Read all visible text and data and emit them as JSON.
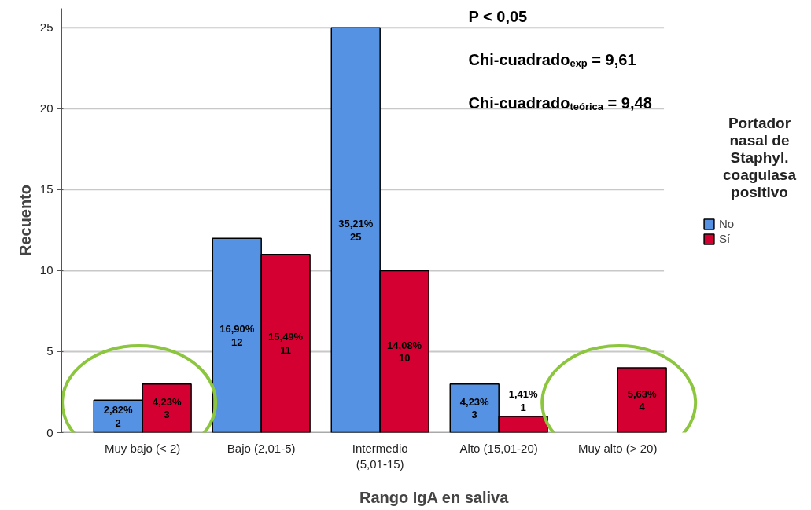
{
  "chart_data": {
    "type": "bar",
    "xlabel": "Rango IgA en saliva",
    "ylabel": "Recuento",
    "legend_title": "Portador nasal de Staphyl. coagulasa positivo",
    "categories": [
      "Muy bajo (< 2)",
      "Bajo (2,01-5)",
      "Intermedio (5,01-15)",
      "Alto (15,01-20)",
      "Muy alto (> 20)"
    ],
    "series": [
      {
        "name": "No",
        "color": "#5592e3",
        "values": [
          2,
          12,
          25,
          3,
          null
        ],
        "value_labels": [
          "2,82%\n2",
          "16,90%\n12",
          "35,21%\n25",
          "4,23%\n3",
          null
        ]
      },
      {
        "name": "Sí",
        "color": "#d50032",
        "values": [
          3,
          11,
          10,
          1,
          4
        ],
        "value_labels": [
          "4,23%\n3",
          "15,49%\n11",
          "14,08%\n10",
          "1,41%\n1",
          "5,63%\n4"
        ]
      }
    ],
    "ylim": [
      0,
      26.2
    ],
    "yticks": [
      0,
      5,
      10,
      15,
      20,
      25
    ],
    "grid": "y",
    "legend": "right",
    "annotations": [
      "P < 0,05",
      "Chi-cuadrado$_{exp}$ = 9,61",
      "Chi-cuadrado$_{teórica}$ = 9,48"
    ]
  }
}
